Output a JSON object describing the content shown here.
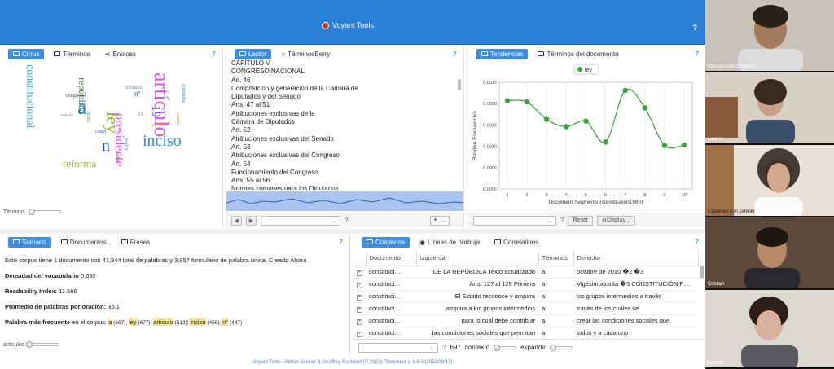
{
  "header": {
    "title": "Voyant Tools",
    "help": "?"
  },
  "cirrus": {
    "tabs": [
      {
        "label": "Cirrus"
      },
      {
        "label": "Términos"
      },
      {
        "label": "Enlaces"
      }
    ],
    "help": "?",
    "slider_label": "Término",
    "words": [
      {
        "t": "artículo",
        "color": "#e056e6"
      },
      {
        "t": "a",
        "color": "#2f8fd6"
      },
      {
        "t": "ley",
        "color": "#8fbf2f"
      },
      {
        "t": "inciso",
        "color": "#2f8fd6"
      },
      {
        "t": "presidente",
        "color": "#e056e6"
      },
      {
        "t": "constitucional",
        "color": "#3aa6e8"
      },
      {
        "t": "n",
        "color": "#2f4fa8"
      },
      {
        "t": "reforma",
        "color": "#8fbf2f"
      },
      {
        "t": "república",
        "color": "#3a7a3a"
      },
      {
        "t": "19",
        "color": "#2f4fa8"
      },
      {
        "t": "nacional",
        "color": "#d08a2a"
      },
      {
        "t": "o",
        "color": "#999"
      },
      {
        "t": "poder",
        "color": "#2f8fd6"
      },
      {
        "t": "cargo",
        "color": "#2f4fa8"
      },
      {
        "t": "congreso",
        "color": "#555"
      },
      {
        "t": "diputados",
        "color": "#2f8fd6"
      },
      {
        "t": "senado",
        "color": "#d08a2a"
      },
      {
        "t": "estado",
        "color": "#999"
      },
      {
        "t": "título",
        "color": "#4a9a4a"
      },
      {
        "t": "podrá",
        "color": "#555"
      },
      {
        "t": "ministros",
        "color": "#888"
      },
      {
        "t": "nº",
        "color": "#2f4fa8"
      }
    ]
  },
  "reader": {
    "tabs": [
      {
        "label": "Lector"
      },
      {
        "label": "TérminosBerry"
      }
    ],
    "help": "?",
    "lines": [
      "CAPÍTULO V",
      "CONGRESO NACIONAL",
      "Art. 46",
      "Composición y generación de la Cámara de",
      "Diputados y del Senado",
      "Arts. 47 al 51",
      "Atribuciones exclusivas de la",
      "Cámara de Diputados",
      "Art. 52",
      "Atribuciones exclusivas del Senado",
      "Art. 53",
      "Atribuciones exclusivas del Congreso",
      "Art. 54",
      "Funcionamiento del Congreso",
      "Arts. 55 al 56",
      "Normas comunes para los Diputados"
    ]
  },
  "trends": {
    "tabs": [
      {
        "label": "Tendencias"
      },
      {
        "label": "Términos del documento"
      }
    ],
    "help": "?",
    "legend": "ley",
    "reset": "Reset",
    "display": "Display",
    "chart_data": {
      "type": "line",
      "x": [
        1,
        2,
        3,
        4,
        5,
        6,
        7,
        8,
        9,
        10
      ],
      "series": [
        {
          "name": "ley",
          "values": [
            0.00207,
            0.00204,
            0.00163,
            0.00146,
            0.00159,
            0.0011,
            0.00231,
            0.0019,
            0.00102,
            0.00103
          ]
        }
      ],
      "xlabel": "Document Segments (constitucion1980)",
      "ylabel": "Relative Frequencies",
      "ylim": [
        0,
        0.0025
      ],
      "yticks": [
        "0.0000",
        "0.0005",
        "0.0010",
        "0.0015",
        "0.0020",
        "0.0025"
      ]
    }
  },
  "summary": {
    "tabs": [
      {
        "label": "Sumario"
      },
      {
        "label": "Documentos"
      },
      {
        "label": "Frases"
      }
    ],
    "help": "?",
    "intro": "Este corpus tiene 1 documento con 41,944 total de palabras y 3,857 formulario de palabra única. Creado Ahora .",
    "density_label": "Densidad del vocabulario",
    "density": "0.092",
    "readability_label": "Readability Index:",
    "readability": "11.566",
    "avg_label": "Promedio de palabras por oración:",
    "avg": "36.1",
    "freq_label": "Palabra más frecuente",
    "freq_suffix": "en el corpus:",
    "freq": [
      {
        "w": "a",
        "c": "(697);"
      },
      {
        "w": "ley",
        "c": "(677);"
      },
      {
        "w": "artículo",
        "c": "(513);"
      },
      {
        "w": "inciso",
        "c": "(456);"
      },
      {
        "w": "n°",
        "c": "(447)"
      }
    ],
    "slider_label": "artículos"
  },
  "contexts": {
    "tabs": [
      {
        "label": "Contextos"
      },
      {
        "label": "Líneas de búrbuja"
      },
      {
        "label": "Correlations"
      }
    ],
    "help": "?",
    "headers": [
      "Documento",
      "Izquierda",
      "Términos",
      "Derecha"
    ],
    "rows": [
      [
        "constituci…",
        "DE LA REPÚBLICA Texto actualizado",
        "a",
        "octubre de 2010 �2 �3"
      ],
      [
        "constituci…",
        "Arts. 127 al 129 Primera",
        "a",
        "Vigésimoquinta �5 CONSTITUCIÓN P…"
      ],
      [
        "constituci…",
        "El Estado reconoce y ampara",
        "a",
        "los grupos intermedios a través"
      ],
      [
        "constituci…",
        "ampara a los grupos intermedios",
        "a",
        "través de los cuales se"
      ],
      [
        "constituci…",
        "para lo cual debe contribuir",
        "a",
        "crear las condiciones sociales que"
      ],
      [
        "constituci…",
        "las condiciones sociales que permitan",
        "a",
        "todos y a cada uno"
      ]
    ],
    "count": "697",
    "context_label": "contexto",
    "expand_label": "expandir"
  },
  "footer": "Voyant Tools , Stéfan Sinclair & Geoffrey Rockwell (© 2022) Privacidad v. 2.6.0 (2022/08/17)",
  "participants": [
    "Manuel Alberto Muñoz",
    "Leonor",
    "Catalina León Jatelier",
    "Cristian",
    "lourdes"
  ]
}
